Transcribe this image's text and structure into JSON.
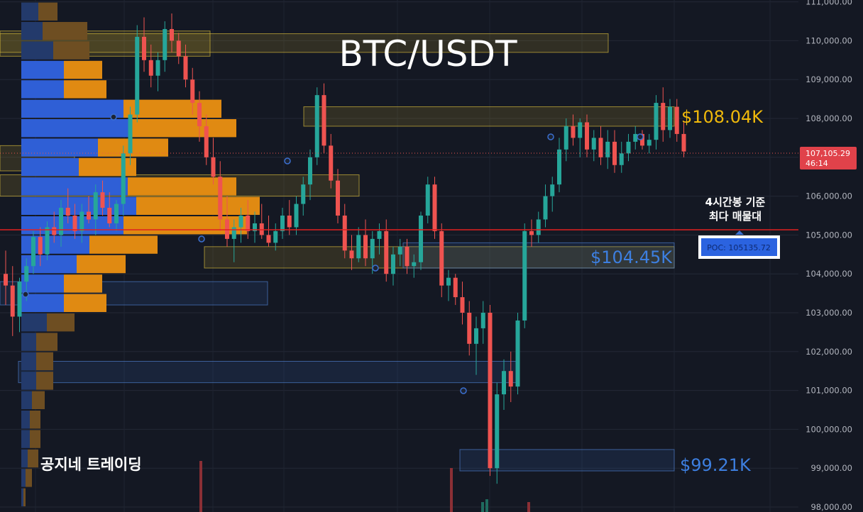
{
  "chart_data": {
    "type": "candlestick",
    "title": "BTC/USDT",
    "y_axis": {
      "ticks": [
        98000,
        99000,
        100000,
        101000,
        102000,
        103000,
        104000,
        105000,
        106000,
        107000,
        108000,
        109000,
        110000,
        111000
      ],
      "tick_labels": [
        "98,000.00",
        "99,000.00",
        "100,000.00",
        "101,000.00",
        "102,000.00",
        "103,000.00",
        "104,000.00",
        "105,000.00",
        "106,000.00",
        "107,000.00",
        "108,000.00",
        "109,000.00",
        "110,000.00",
        "111,000.00"
      ],
      "ylim": [
        98000,
        111000
      ]
    },
    "current_price": {
      "value": 107105.29,
      "label": "107,105.29",
      "countdown": "46:14"
    },
    "poc": {
      "value": 105135.72,
      "label": "POC: 105135.72"
    },
    "annotation_lines": [
      "4시간봉 기준",
      "최다 매물대"
    ],
    "zone_labels": [
      {
        "text": "$108.04K",
        "value": 108040,
        "color": "#f0b90b"
      },
      {
        "text": "$104.45K",
        "value": 104450,
        "color": "#3d7fe0"
      },
      {
        "text": "$99.21K",
        "value": 99210,
        "color": "#3d7fe0"
      }
    ],
    "watermark": "공지네 트레이딩",
    "zones": [
      {
        "kind": "supply",
        "high": 110250,
        "low": 109600
      },
      {
        "kind": "supply",
        "high": 110180,
        "low": 109700
      },
      {
        "kind": "supply",
        "high": 108300,
        "low": 107800
      },
      {
        "kind": "supply",
        "high": 107300,
        "low": 106650
      },
      {
        "kind": "supply",
        "high": 106550,
        "low": 106000
      },
      {
        "kind": "supply",
        "high": 104700,
        "low": 104150
      },
      {
        "kind": "demand",
        "high": 104800,
        "low": 104150
      },
      {
        "kind": "demand",
        "high": 103800,
        "low": 103200
      },
      {
        "kind": "demand",
        "high": 101750,
        "low": 101200
      },
      {
        "kind": "demand",
        "high": 99480,
        "low": 98930
      }
    ],
    "volume_profile": [
      {
        "price": 110750,
        "buy": 0.08,
        "sell": 0.09
      },
      {
        "price": 110250,
        "buy": 0.1,
        "sell": 0.21
      },
      {
        "price": 109750,
        "buy": 0.15,
        "sell": 0.17
      },
      {
        "price": 109250,
        "buy": 0.2,
        "sell": 0.18
      },
      {
        "price": 108750,
        "buy": 0.2,
        "sell": 0.2
      },
      {
        "price": 108250,
        "buy": 0.48,
        "sell": 0.46
      },
      {
        "price": 107750,
        "buy": 0.52,
        "sell": 0.49
      },
      {
        "price": 107250,
        "buy": 0.36,
        "sell": 0.33
      },
      {
        "price": 106750,
        "buy": 0.27,
        "sell": 0.27
      },
      {
        "price": 106250,
        "buy": 0.5,
        "sell": 0.51
      },
      {
        "price": 105750,
        "buy": 0.54,
        "sell": 0.58
      },
      {
        "price": 105250,
        "buy": 0.48,
        "sell": 0.58
      },
      {
        "price": 104750,
        "buy": 0.32,
        "sell": 0.32
      },
      {
        "price": 104250,
        "buy": 0.26,
        "sell": 0.23
      },
      {
        "price": 103750,
        "buy": 0.2,
        "sell": 0.18
      },
      {
        "price": 103250,
        "buy": 0.2,
        "sell": 0.2
      },
      {
        "price": 102750,
        "buy": 0.12,
        "sell": 0.13
      },
      {
        "price": 102250,
        "buy": 0.07,
        "sell": 0.1
      },
      {
        "price": 101750,
        "buy": 0.07,
        "sell": 0.08
      },
      {
        "price": 101250,
        "buy": 0.07,
        "sell": 0.08
      },
      {
        "price": 100750,
        "buy": 0.05,
        "sell": 0.06
      },
      {
        "price": 100250,
        "buy": 0.04,
        "sell": 0.05
      },
      {
        "price": 99750,
        "buy": 0.04,
        "sell": 0.05
      },
      {
        "price": 99250,
        "buy": 0.03,
        "sell": 0.05
      },
      {
        "price": 98750,
        "buy": 0.02,
        "sell": 0.03
      },
      {
        "price": 98250,
        "buy": 0.01,
        "sell": 0.01
      }
    ],
    "candles": [
      [
        104000,
        104600,
        103200,
        103700
      ],
      [
        103700,
        104200,
        102400,
        102900
      ],
      [
        102900,
        103900,
        102500,
        103800
      ],
      [
        103800,
        104400,
        103300,
        104200
      ],
      [
        104200,
        105100,
        104000,
        104950
      ],
      [
        104950,
        105200,
        104200,
        104500
      ],
      [
        104500,
        105350,
        104350,
        105200
      ],
      [
        105200,
        105600,
        104800,
        105000
      ],
      [
        105000,
        105900,
        104700,
        105700
      ],
      [
        105700,
        106200,
        105300,
        105500
      ],
      [
        105500,
        105800,
        104900,
        105100
      ],
      [
        105100,
        105800,
        104800,
        105600
      ],
      [
        105600,
        106000,
        105300,
        105400
      ],
      [
        105400,
        106300,
        105000,
        106100
      ],
      [
        106100,
        106400,
        105500,
        105700
      ],
      [
        105700,
        106100,
        105200,
        105300
      ],
      [
        105300,
        105900,
        105100,
        105800
      ],
      [
        105800,
        107300,
        105500,
        107100
      ],
      [
        107100,
        108300,
        106800,
        108100
      ],
      [
        108100,
        110400,
        107900,
        110100
      ],
      [
        110100,
        110600,
        109200,
        109500
      ],
      [
        109500,
        109900,
        108800,
        109100
      ],
      [
        109100,
        109700,
        108700,
        109500
      ],
      [
        109500,
        110500,
        109200,
        110300
      ],
      [
        110300,
        110700,
        109700,
        110000
      ],
      [
        110000,
        110200,
        109400,
        109600
      ],
      [
        109600,
        109900,
        108800,
        109000
      ],
      [
        109000,
        109300,
        108100,
        108400
      ],
      [
        108400,
        108700,
        107400,
        107800
      ],
      [
        107800,
        108100,
        106800,
        107000
      ],
      [
        107000,
        107500,
        106300,
        106500
      ],
      [
        106500,
        106900,
        105100,
        105400
      ],
      [
        105400,
        106000,
        104700,
        104900
      ],
      [
        104900,
        105400,
        104300,
        105200
      ],
      [
        105200,
        105700,
        104800,
        105500
      ],
      [
        105500,
        105900,
        104900,
        105100
      ],
      [
        105100,
        105600,
        104800,
        105300
      ],
      [
        105300,
        105800,
        104900,
        105000
      ],
      [
        105000,
        105500,
        104700,
        104800
      ],
      [
        104800,
        105300,
        104600,
        105100
      ],
      [
        105100,
        105700,
        104900,
        105500
      ],
      [
        105500,
        105900,
        105000,
        105200
      ],
      [
        105200,
        106000,
        105000,
        105800
      ],
      [
        105800,
        106500,
        105500,
        106300
      ],
      [
        106300,
        107200,
        105900,
        107000
      ],
      [
        107000,
        108800,
        106800,
        108600
      ],
      [
        108600,
        108900,
        107100,
        107300
      ],
      [
        107300,
        107600,
        106200,
        106400
      ],
      [
        106400,
        106700,
        105300,
        105500
      ],
      [
        105500,
        105800,
        104400,
        104600
      ],
      [
        104600,
        105000,
        104100,
        104400
      ],
      [
        104400,
        105200,
        104300,
        105000
      ],
      [
        105000,
        105400,
        104200,
        104400
      ],
      [
        104400,
        105100,
        104000,
        104900
      ],
      [
        104900,
        105300,
        104500,
        105100
      ],
      [
        105100,
        105400,
        103800,
        104000
      ],
      [
        104000,
        104700,
        103700,
        104500
      ],
      [
        104500,
        104900,
        104200,
        104700
      ],
      [
        104700,
        104900,
        104000,
        104200
      ],
      [
        104200,
        104500,
        103900,
        104300
      ],
      [
        104300,
        105600,
        104100,
        105500
      ],
      [
        105500,
        106500,
        105300,
        106300
      ],
      [
        106300,
        106500,
        104900,
        105100
      ],
      [
        105100,
        105300,
        103400,
        103700
      ],
      [
        103700,
        104100,
        103300,
        103900
      ],
      [
        103900,
        104000,
        103200,
        103400
      ],
      [
        103400,
        103800,
        102700,
        103000
      ],
      [
        103000,
        103300,
        101900,
        102200
      ],
      [
        102200,
        102900,
        101400,
        102600
      ],
      [
        102600,
        103300,
        102200,
        103000
      ],
      [
        103000,
        103200,
        98800,
        99000
      ],
      [
        99000,
        101200,
        98600,
        100900
      ],
      [
        100900,
        101800,
        100500,
        101500
      ],
      [
        101500,
        102000,
        100700,
        101100
      ],
      [
        101100,
        103000,
        100900,
        102800
      ],
      [
        102800,
        105300,
        102600,
        105100
      ],
      [
        105100,
        105400,
        104700,
        105000
      ],
      [
        105000,
        105600,
        104800,
        105400
      ],
      [
        105400,
        106300,
        105200,
        106000
      ],
      [
        106000,
        106500,
        105600,
        106300
      ],
      [
        106300,
        107500,
        106100,
        107200
      ],
      [
        107200,
        108000,
        106900,
        107800
      ],
      [
        107800,
        108100,
        107300,
        107500
      ],
      [
        107500,
        108000,
        107000,
        107900
      ],
      [
        107900,
        108100,
        107000,
        107200
      ],
      [
        107200,
        107700,
        106900,
        107500
      ],
      [
        107500,
        107800,
        106800,
        107000
      ],
      [
        107000,
        107700,
        106700,
        107400
      ],
      [
        107400,
        107700,
        106600,
        106800
      ],
      [
        106800,
        107400,
        106600,
        107100
      ],
      [
        107100,
        107600,
        106900,
        107400
      ],
      [
        107400,
        107800,
        107200,
        107600
      ],
      [
        107600,
        107700,
        107200,
        107300
      ],
      [
        107300,
        107600,
        107100,
        107450
      ],
      [
        107450,
        108600,
        107200,
        108400
      ],
      [
        108400,
        108800,
        107400,
        107700
      ],
      [
        107700,
        108500,
        107500,
        108300
      ],
      [
        108300,
        108500,
        107400,
        107600
      ],
      [
        107600,
        107900,
        107000,
        107150
      ]
    ]
  }
}
